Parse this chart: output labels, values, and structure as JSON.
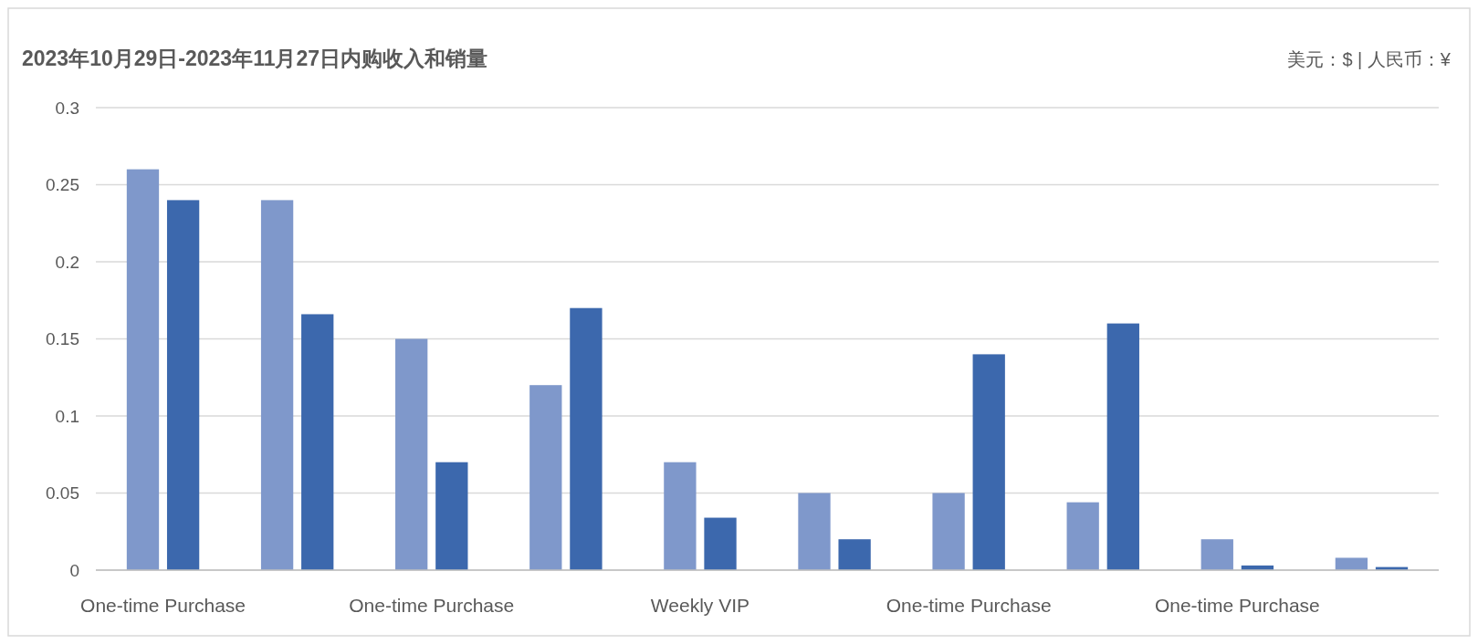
{
  "chart_data": {
    "type": "bar",
    "title": "2023年10月29日-2023年11月27日内购收入和销量",
    "annotations": [
      "美元：$ | 人民币：¥"
    ],
    "categories": [
      "One-time Purchase",
      null,
      "One-time Purchase",
      null,
      "Weekly VIP",
      null,
      "One-time Purchase",
      null,
      "One-time Purchase",
      null
    ],
    "series": [
      {
        "color": "#7f98cb",
        "values": [
          0.26,
          0.24,
          0.15,
          0.12,
          0.07,
          0.05,
          0.05,
          0.044,
          0.02,
          0.008
        ]
      },
      {
        "color": "#3c68ad",
        "values": [
          0.24,
          0.166,
          0.07,
          0.17,
          0.034,
          0.02,
          0.14,
          0.16,
          0.003,
          0.002
        ]
      }
    ],
    "ylim": [
      0,
      0.3
    ],
    "yticks": [
      0,
      0.05,
      0.1,
      0.15,
      0.2,
      0.25,
      0.3
    ],
    "grid": "y"
  }
}
